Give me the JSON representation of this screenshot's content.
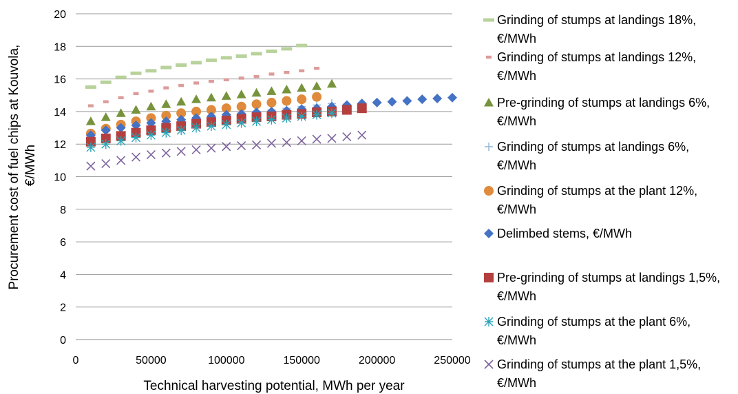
{
  "chart_data": {
    "type": "scatter",
    "xlabel": "Technical harvesting potential, MWh per  year",
    "ylabel_lines": [
      "Procurement cost of fuel chips  at Kouvola,",
      "€/MWh"
    ],
    "xlim": [
      0,
      250000
    ],
    "ylim": [
      0,
      20
    ],
    "x_ticks": [
      "0",
      "50000",
      "100000",
      "150000",
      "200000",
      "250000"
    ],
    "y_ticks": [
      "0",
      "2",
      "4",
      "6",
      "8",
      "10",
      "12",
      "14",
      "16",
      "18",
      "20"
    ],
    "grid": true,
    "legend_position": "right",
    "series": [
      {
        "name_lines": [
          "Grinding of stumps at landings 18%,",
          "€/MWh"
        ],
        "marker": "dash",
        "color": "#b8d29b",
        "x": [
          10000,
          20000,
          30000,
          40000,
          50000,
          60000,
          70000,
          80000,
          90000,
          100000,
          110000,
          120000,
          130000,
          140000,
          150000
        ],
        "y": [
          15.5,
          15.8,
          16.1,
          16.35,
          16.5,
          16.7,
          16.85,
          17.0,
          17.15,
          17.3,
          17.4,
          17.55,
          17.7,
          17.85,
          18.05
        ]
      },
      {
        "name_lines": [
          "Grinding of stumps at landings 12%,",
          "€/MWh"
        ],
        "marker": "dash-short",
        "color": "#dc9c9a",
        "x": [
          10000,
          20000,
          30000,
          40000,
          50000,
          60000,
          70000,
          80000,
          90000,
          100000,
          110000,
          120000,
          130000,
          140000,
          150000,
          160000
        ],
        "y": [
          14.35,
          14.6,
          14.85,
          15.1,
          15.25,
          15.45,
          15.6,
          15.75,
          15.85,
          15.95,
          16.05,
          16.15,
          16.3,
          16.4,
          16.5,
          16.65
        ]
      },
      {
        "name_lines": [
          "Pre-grinding of stumps at landings 6%,",
          "€/MWh"
        ],
        "marker": "triangle",
        "color": "#77933c",
        "x": [
          10000,
          20000,
          30000,
          40000,
          50000,
          60000,
          70000,
          80000,
          90000,
          100000,
          110000,
          120000,
          130000,
          140000,
          150000,
          160000,
          170000
        ],
        "y": [
          13.4,
          13.65,
          13.9,
          14.1,
          14.3,
          14.45,
          14.6,
          14.75,
          14.85,
          14.95,
          15.05,
          15.15,
          15.25,
          15.35,
          15.45,
          15.55,
          15.7
        ]
      },
      {
        "name_lines": [
          "Grinding of stumps at landings 6%,",
          "€/MWh"
        ],
        "marker": "plus",
        "color": "#8fb4d4",
        "x": [
          10000,
          20000,
          30000,
          40000,
          50000,
          60000,
          70000,
          80000,
          90000,
          100000,
          110000,
          120000,
          130000,
          140000,
          150000,
          160000,
          170000
        ],
        "y": [
          12.3,
          12.5,
          12.75,
          12.95,
          13.1,
          13.25,
          13.4,
          13.55,
          13.7,
          13.8,
          13.9,
          14.0,
          14.1,
          14.2,
          14.3,
          14.4,
          14.5
        ]
      },
      {
        "name_lines": [
          "Grinding of stumps at the plant 12%,",
          "€/MWh"
        ],
        "marker": "circle",
        "color": "#e08a3c",
        "x": [
          10000,
          20000,
          30000,
          40000,
          50000,
          60000,
          70000,
          80000,
          90000,
          100000,
          110000,
          120000,
          130000,
          140000,
          150000,
          160000
        ],
        "y": [
          12.65,
          12.95,
          13.2,
          13.4,
          13.6,
          13.75,
          13.9,
          14.0,
          14.1,
          14.2,
          14.3,
          14.45,
          14.55,
          14.65,
          14.75,
          14.9
        ]
      },
      {
        "name_lines": [
          "Delimbed stems, €/MWh"
        ],
        "marker": "diamond",
        "color": "#4472c4",
        "x": [
          10000,
          20000,
          30000,
          40000,
          50000,
          60000,
          70000,
          80000,
          90000,
          100000,
          110000,
          120000,
          130000,
          140000,
          150000,
          160000,
          170000,
          180000,
          190000,
          200000,
          210000,
          220000,
          230000,
          240000,
          250000
        ],
        "y": [
          12.55,
          12.85,
          13.0,
          13.15,
          13.3,
          13.4,
          13.5,
          13.6,
          13.7,
          13.8,
          13.85,
          13.95,
          14.0,
          14.05,
          14.15,
          14.2,
          14.3,
          14.4,
          14.5,
          14.55,
          14.6,
          14.65,
          14.75,
          14.8,
          14.85
        ]
      },
      {
        "name_lines": [
          "Pre-grinding of stumps at landings 1,5%,",
          "€/MWh"
        ],
        "marker": "square",
        "color": "#b3403f",
        "x": [
          10000,
          20000,
          30000,
          40000,
          50000,
          60000,
          70000,
          80000,
          90000,
          100000,
          110000,
          120000,
          130000,
          140000,
          150000,
          160000,
          170000,
          180000,
          190000
        ],
        "y": [
          12.15,
          12.35,
          12.5,
          12.7,
          12.85,
          13.0,
          13.1,
          13.25,
          13.35,
          13.45,
          13.55,
          13.65,
          13.7,
          13.8,
          13.85,
          13.95,
          14.0,
          14.1,
          14.2
        ]
      },
      {
        "name_lines": [
          "Grinding of stumps at the plant 6%,",
          "€/MWh"
        ],
        "marker": "asterisk",
        "color": "#2aa5b8",
        "x": [
          10000,
          20000,
          30000,
          40000,
          50000,
          60000,
          70000,
          80000,
          90000,
          100000,
          110000,
          120000,
          130000,
          140000,
          150000,
          160000,
          170000
        ],
        "y": [
          11.8,
          12.0,
          12.2,
          12.4,
          12.55,
          12.7,
          12.85,
          13.0,
          13.1,
          13.2,
          13.3,
          13.4,
          13.5,
          13.6,
          13.7,
          13.8,
          13.9
        ]
      },
      {
        "name_lines": [
          "Grinding of stumps at the plant 1,5%,",
          "€/MWh"
        ],
        "marker": "x",
        "color": "#7e649e",
        "x": [
          10000,
          20000,
          30000,
          40000,
          50000,
          60000,
          70000,
          80000,
          90000,
          100000,
          110000,
          120000,
          130000,
          140000,
          150000,
          160000,
          170000,
          180000,
          190000
        ],
        "y": [
          10.65,
          10.8,
          11.0,
          11.2,
          11.35,
          11.45,
          11.55,
          11.65,
          11.75,
          11.85,
          11.9,
          11.95,
          12.05,
          12.1,
          12.2,
          12.3,
          12.35,
          12.45,
          12.55
        ]
      }
    ]
  }
}
